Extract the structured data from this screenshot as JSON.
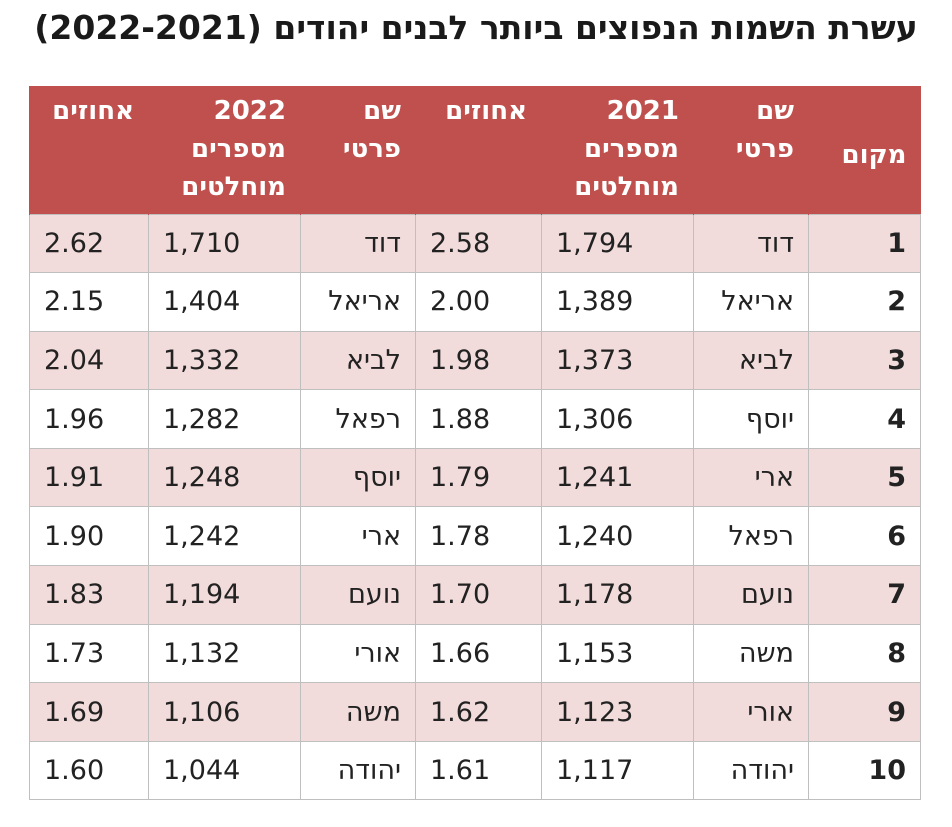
{
  "title": "עשרת השמות הנפוצים ביותר לבנים יהודים (2022-2021)",
  "header": {
    "rank": "מקום",
    "name_2021": [
      "שם",
      "פרטי"
    ],
    "abs_2021": [
      "2021",
      "מספרים",
      "מוחלטים"
    ],
    "pct_2021": "אחוזים",
    "name_2022": [
      "שם",
      "פרטי"
    ],
    "abs_2022": [
      "2022",
      "מספרים",
      "מוחלטים"
    ],
    "pct_2022": "אחוזים"
  },
  "rows": [
    {
      "rank": "1",
      "name_2021": "דוד",
      "abs_2021": "1,794",
      "pct_2021": "2.58",
      "name_2022": "דוד",
      "abs_2022": "1,710",
      "pct_2022": "2.62"
    },
    {
      "rank": "2",
      "name_2021": "אריאל",
      "abs_2021": "1,389",
      "pct_2021": "2.00",
      "name_2022": "אריאל",
      "abs_2022": "1,404",
      "pct_2022": "2.15"
    },
    {
      "rank": "3",
      "name_2021": "לביא",
      "abs_2021": "1,373",
      "pct_2021": "1.98",
      "name_2022": "לביא",
      "abs_2022": "1,332",
      "pct_2022": "2.04"
    },
    {
      "rank": "4",
      "name_2021": "יוסף",
      "abs_2021": "1,306",
      "pct_2021": "1.88",
      "name_2022": "רפאל",
      "abs_2022": "1,282",
      "pct_2022": "1.96"
    },
    {
      "rank": "5",
      "name_2021": "ארי",
      "abs_2021": "1,241",
      "pct_2021": "1.79",
      "name_2022": "יוסף",
      "abs_2022": "1,248",
      "pct_2022": "1.91"
    },
    {
      "rank": "6",
      "name_2021": "רפאל",
      "abs_2021": "1,240",
      "pct_2021": "1.78",
      "name_2022": "ארי",
      "abs_2022": "1,242",
      "pct_2022": "1.90"
    },
    {
      "rank": "7",
      "name_2021": "נועם",
      "abs_2021": "1,178",
      "pct_2021": "1.70",
      "name_2022": "נועם",
      "abs_2022": "1,194",
      "pct_2022": "1.83"
    },
    {
      "rank": "8",
      "name_2021": "משה",
      "abs_2021": "1,153",
      "pct_2021": "1.66",
      "name_2022": "אורי",
      "abs_2022": "1,132",
      "pct_2022": "1.73"
    },
    {
      "rank": "9",
      "name_2021": "אורי",
      "abs_2021": "1,123",
      "pct_2021": "1.62",
      "name_2022": "משה",
      "abs_2022": "1,106",
      "pct_2022": "1.69"
    },
    {
      "rank": "10",
      "name_2021": "יהודה",
      "abs_2021": "1,117",
      "pct_2021": "1.61",
      "name_2022": "יהודה",
      "abs_2022": "1,044",
      "pct_2022": "1.60"
    }
  ],
  "colors": {
    "header_bg": "#c0504d",
    "stripe": "#f2dcdb"
  }
}
